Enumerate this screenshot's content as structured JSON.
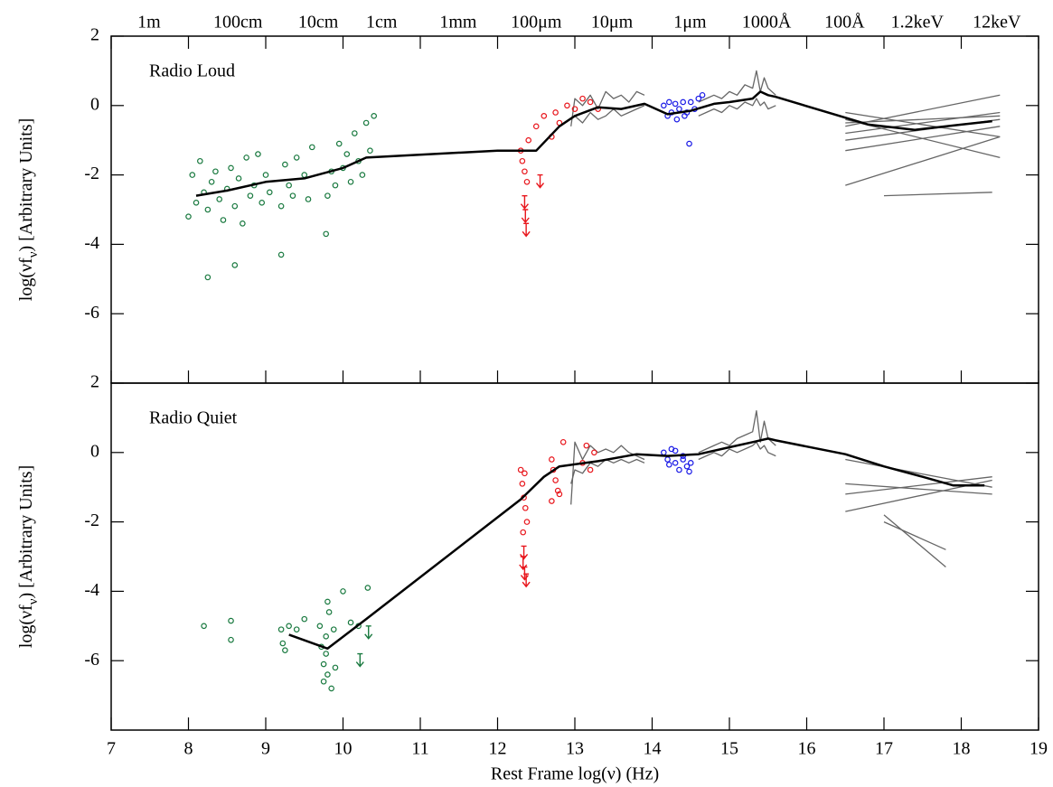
{
  "chart_data": [
    {
      "type": "line",
      "label": "Radio Loud",
      "ylabel": [
        "log(νf",
        "ν",
        ") [Arbitrary Units]"
      ],
      "xlim": [
        7,
        19
      ],
      "ylim": [
        -8,
        2
      ],
      "yticks": [
        -6,
        -4,
        -2,
        0,
        2
      ],
      "x2ticks": [
        {
          "value": 7.49,
          "label": "1m"
        },
        {
          "value": 8.64,
          "label": "100cm"
        },
        {
          "value": 9.68,
          "label": "10cm"
        },
        {
          "value": 10.5,
          "label": "1cm"
        },
        {
          "value": 11.49,
          "label": "1mm"
        },
        {
          "value": 12.5,
          "label": "100μm"
        },
        {
          "value": 13.48,
          "label": "10μm"
        },
        {
          "value": 14.49,
          "label": "1μm"
        },
        {
          "value": 15.48,
          "label": "1000Å"
        },
        {
          "value": 16.49,
          "label": "100Å"
        },
        {
          "value": 17.43,
          "label": "1.2keV"
        },
        {
          "value": 18.46,
          "label": "12keV"
        }
      ],
      "series": [
        {
          "marker": "line",
          "color": "#666666",
          "x": [
            12.95,
            13.0,
            13.1,
            13.2,
            13.3,
            13.4,
            13.5,
            13.6,
            13.7,
            13.8,
            13.9
          ],
          "values": [
            -0.6,
            0.2,
            0.0,
            0.3,
            -0.1,
            0.4,
            0.2,
            0.3,
            0.1,
            0.4,
            0.3
          ]
        },
        {
          "marker": "line",
          "color": "#666666",
          "x": [
            12.95,
            13.0,
            13.1,
            13.2,
            13.3,
            13.4,
            13.5,
            13.6,
            13.7,
            13.8,
            13.9
          ],
          "values": [
            -0.4,
            -0.3,
            -0.5,
            -0.2,
            -0.4,
            -0.3,
            -0.1,
            -0.3,
            -0.2,
            -0.1,
            0.0
          ]
        },
        {
          "marker": "line",
          "color": "#666666",
          "x": [
            14.6,
            14.7,
            14.8,
            14.9,
            15.0,
            15.1,
            15.2,
            15.3,
            15.35,
            15.4,
            15.45,
            15.5,
            15.6
          ],
          "values": [
            0.1,
            0.2,
            0.3,
            0.2,
            0.4,
            0.3,
            0.6,
            0.5,
            1.0,
            0.4,
            0.8,
            0.5,
            0.3
          ]
        },
        {
          "marker": "line",
          "color": "#666666",
          "x": [
            14.6,
            14.7,
            14.8,
            14.9,
            15.0,
            15.1,
            15.2,
            15.3,
            15.35,
            15.4,
            15.45,
            15.5,
            15.6
          ],
          "values": [
            -0.3,
            -0.2,
            -0.1,
            -0.2,
            0.0,
            -0.1,
            0.1,
            0.0,
            0.2,
            0.0,
            0.1,
            -0.1,
            0.0
          ]
        },
        {
          "marker": "line",
          "color": "#666666",
          "x": [
            16.5,
            18.5
          ],
          "values": [
            -0.2,
            -0.9
          ]
        },
        {
          "marker": "line",
          "color": "#666666",
          "x": [
            16.5,
            18.5
          ],
          "values": [
            -0.5,
            -0.3
          ]
        },
        {
          "marker": "line",
          "color": "#666666",
          "x": [
            16.5,
            18.5
          ],
          "values": [
            -0.8,
            -0.2
          ]
        },
        {
          "marker": "line",
          "color": "#666666",
          "x": [
            16.5,
            18.5
          ],
          "values": [
            -1.3,
            -0.6
          ]
        },
        {
          "marker": "line",
          "color": "#666666",
          "x": [
            16.5,
            18.5
          ],
          "values": [
            -2.3,
            -0.9
          ]
        },
        {
          "marker": "line",
          "color": "#666666",
          "x": [
            16.5,
            18.5
          ],
          "values": [
            -0.4,
            -1.5
          ]
        },
        {
          "marker": "line",
          "color": "#666666",
          "x": [
            16.5,
            18.5
          ],
          "values": [
            -0.6,
            0.3
          ]
        },
        {
          "marker": "line",
          "color": "#666666",
          "x": [
            16.5,
            18.5
          ],
          "values": [
            -1.0,
            -0.4
          ]
        },
        {
          "marker": "line",
          "color": "#666666",
          "x": [
            17.0,
            18.4
          ],
          "values": [
            -2.6,
            -2.5
          ]
        },
        {
          "marker": "circle",
          "color": "#1a7a40",
          "x": [
            8.0,
            8.05,
            8.1,
            8.15,
            8.2,
            8.25,
            8.3,
            8.35,
            8.4,
            8.45,
            8.5,
            8.55,
            8.6,
            8.65,
            8.7,
            8.75,
            8.8,
            8.85,
            8.9,
            8.95,
            9.0,
            9.05,
            9.2,
            9.25,
            9.3,
            9.35,
            9.4,
            9.5,
            9.55,
            9.6,
            9.8,
            9.85,
            9.9,
            9.95,
            10.0,
            10.05,
            10.1,
            10.15,
            10.2,
            10.25,
            10.3,
            10.35,
            10.4,
            8.25,
            8.6,
            9.2,
            9.78
          ],
          "values": [
            -3.2,
            -2.0,
            -2.8,
            -1.6,
            -2.5,
            -3.0,
            -2.2,
            -1.9,
            -2.7,
            -3.3,
            -2.4,
            -1.8,
            -2.9,
            -2.1,
            -3.4,
            -1.5,
            -2.6,
            -2.3,
            -1.4,
            -2.8,
            -2.0,
            -2.5,
            -2.9,
            -1.7,
            -2.3,
            -2.6,
            -1.5,
            -2.0,
            -2.7,
            -1.2,
            -2.6,
            -1.9,
            -2.3,
            -1.1,
            -1.8,
            -1.4,
            -2.2,
            -0.8,
            -1.6,
            -2.0,
            -0.5,
            -1.3,
            -0.3,
            -4.95,
            -4.6,
            -4.3,
            -3.7
          ]
        },
        {
          "marker": "circle",
          "color": "#e8161c",
          "x": [
            12.3,
            12.32,
            12.35,
            12.38,
            12.4,
            12.5,
            12.6,
            12.7,
            12.75,
            12.8,
            12.9,
            13.0,
            13.1,
            13.2,
            13.3
          ],
          "values": [
            -1.3,
            -1.6,
            -1.9,
            -2.2,
            -1.0,
            -0.6,
            -0.3,
            -0.9,
            -0.2,
            -0.5,
            0.0,
            -0.1,
            0.2,
            0.1,
            -0.1
          ]
        },
        {
          "marker": "arrow",
          "color": "#e8161c",
          "x": [
            12.35,
            12.36,
            12.37,
            12.55
          ],
          "values": [
            -2.6,
            -3.0,
            -3.4,
            -2.0
          ]
        },
        {
          "marker": "circle",
          "color": "#1a1ae6",
          "x": [
            14.15,
            14.2,
            14.22,
            14.25,
            14.3,
            14.32,
            14.35,
            14.4,
            14.42,
            14.45,
            14.5,
            14.55,
            14.6,
            14.65,
            14.48
          ],
          "values": [
            0.0,
            -0.3,
            0.1,
            -0.2,
            0.05,
            -0.4,
            -0.1,
            0.1,
            -0.3,
            -0.2,
            0.1,
            -0.1,
            0.2,
            0.3,
            -1.1
          ]
        },
        {
          "marker": "line",
          "color": "#000000",
          "width": 2.5,
          "x": [
            8.1,
            8.5,
            9.0,
            9.5,
            10.0,
            10.3,
            12.0,
            12.5,
            12.8,
            13.0,
            13.3,
            13.6,
            13.9,
            14.2,
            14.5,
            14.8,
            15.0,
            15.3,
            15.4,
            15.5,
            15.6,
            16.8,
            17.4,
            18.0,
            18.4
          ],
          "values": [
            -2.6,
            -2.45,
            -2.2,
            -2.1,
            -1.8,
            -1.5,
            -1.3,
            -1.3,
            -0.6,
            -0.3,
            -0.05,
            -0.1,
            0.05,
            -0.25,
            -0.15,
            0.05,
            0.1,
            0.2,
            0.4,
            0.3,
            0.25,
            -0.55,
            -0.7,
            -0.55,
            -0.45
          ]
        }
      ]
    },
    {
      "type": "line",
      "label": "Radio Quiet",
      "ylabel": [
        "log(νf",
        "ν",
        ") [Arbitrary Units]"
      ],
      "xlabel": "Rest Frame  log(ν)  (Hz)",
      "xlim": [
        7,
        19
      ],
      "ylim": [
        -8,
        2
      ],
      "yticks": [
        -6,
        -4,
        -2,
        0,
        2
      ],
      "xticks": [
        7,
        8,
        9,
        10,
        11,
        12,
        13,
        14,
        15,
        16,
        17,
        18,
        19
      ],
      "series": [
        {
          "marker": "line",
          "color": "#666666",
          "x": [
            12.95,
            13.0,
            13.1,
            13.2,
            13.3,
            13.4,
            13.5,
            13.6,
            13.7,
            13.8,
            13.9
          ],
          "values": [
            -1.5,
            0.3,
            -0.2,
            0.2,
            0.0,
            0.1,
            0.0,
            0.2,
            0.0,
            -0.1,
            -0.2
          ]
        },
        {
          "marker": "line",
          "color": "#666666",
          "x": [
            12.95,
            13.0,
            13.1,
            13.2,
            13.3,
            13.4,
            13.5,
            13.6,
            13.7,
            13.8,
            13.9
          ],
          "values": [
            -0.9,
            -0.5,
            -0.6,
            -0.3,
            -0.4,
            -0.2,
            -0.3,
            -0.2,
            -0.3,
            -0.2,
            -0.3
          ]
        },
        {
          "marker": "line",
          "color": "#666666",
          "x": [
            14.6,
            14.7,
            14.8,
            14.9,
            15.0,
            15.1,
            15.2,
            15.3,
            15.35,
            15.4,
            15.45,
            15.5,
            15.6
          ],
          "values": [
            0.0,
            0.1,
            0.2,
            0.3,
            0.2,
            0.4,
            0.5,
            0.6,
            1.2,
            0.3,
            0.9,
            0.4,
            0.2
          ]
        },
        {
          "marker": "line",
          "color": "#666666",
          "x": [
            14.6,
            14.7,
            14.8,
            14.9,
            15.0,
            15.1,
            15.2,
            15.3,
            15.35,
            15.4,
            15.45,
            15.5,
            15.6
          ],
          "values": [
            -0.2,
            -0.1,
            0.0,
            -0.1,
            0.1,
            0.0,
            0.1,
            0.2,
            0.3,
            0.1,
            0.2,
            0.0,
            -0.1
          ]
        },
        {
          "marker": "line",
          "color": "#666666",
          "x": [
            16.5,
            18.4
          ],
          "values": [
            -0.9,
            -1.2
          ]
        },
        {
          "marker": "line",
          "color": "#666666",
          "x": [
            16.5,
            18.4
          ],
          "values": [
            -1.7,
            -0.8
          ]
        },
        {
          "marker": "line",
          "color": "#666666",
          "x": [
            16.5,
            18.4
          ],
          "values": [
            -0.2,
            -1.0
          ]
        },
        {
          "marker": "line",
          "color": "#666666",
          "x": [
            16.5,
            18.4
          ],
          "values": [
            -1.2,
            -0.7
          ]
        },
        {
          "marker": "line",
          "color": "#666666",
          "x": [
            17.0,
            17.8
          ],
          "values": [
            -1.8,
            -3.3
          ]
        },
        {
          "marker": "line",
          "color": "#666666",
          "x": [
            17.0,
            17.8
          ],
          "values": [
            -2.0,
            -2.8
          ]
        },
        {
          "marker": "circle",
          "color": "#1a7a40",
          "x": [
            8.2,
            8.55,
            8.55,
            9.2,
            9.22,
            9.25,
            9.3,
            9.4,
            9.5,
            9.7,
            9.72,
            9.75,
            9.78,
            9.8,
            9.82,
            9.85,
            9.75,
            9.88,
            9.8,
            10.0,
            10.1,
            10.2,
            10.32,
            9.78,
            9.9
          ],
          "values": [
            -5.0,
            -4.85,
            -5.4,
            -5.1,
            -5.5,
            -5.7,
            -5.0,
            -5.1,
            -4.8,
            -5.0,
            -5.6,
            -6.1,
            -5.3,
            -6.4,
            -4.6,
            -6.8,
            -6.6,
            -5.1,
            -4.3,
            -4.0,
            -4.9,
            -5.0,
            -3.9,
            -5.8,
            -6.2
          ]
        },
        {
          "marker": "arrow",
          "color": "#1a7a40",
          "x": [
            10.22,
            10.33
          ],
          "values": [
            -5.8,
            -5.0
          ]
        },
        {
          "marker": "circle",
          "color": "#e8161c",
          "x": [
            12.3,
            12.32,
            12.34,
            12.36,
            12.38,
            12.33,
            12.35,
            12.7,
            12.72,
            12.75,
            12.78,
            12.8,
            12.85,
            12.7,
            13.1,
            13.15,
            13.2,
            13.25
          ],
          "values": [
            -0.5,
            -0.9,
            -1.3,
            -1.6,
            -2.0,
            -2.3,
            -0.6,
            -0.2,
            -0.5,
            -0.8,
            -1.1,
            -1.2,
            0.3,
            -1.4,
            -0.3,
            0.2,
            -0.5,
            0.0
          ]
        },
        {
          "marker": "arrow",
          "color": "#e8161c",
          "x": [
            12.33,
            12.35,
            12.37,
            12.34
          ],
          "values": [
            -3.0,
            -3.3,
            -3.5,
            -2.7
          ]
        },
        {
          "marker": "circle",
          "color": "#1a1ae6",
          "x": [
            14.15,
            14.2,
            14.25,
            14.3,
            14.35,
            14.4,
            14.45,
            14.5,
            14.3,
            14.4,
            14.22,
            14.48
          ],
          "values": [
            0.0,
            -0.2,
            0.1,
            -0.3,
            -0.5,
            -0.2,
            -0.4,
            -0.3,
            0.05,
            -0.1,
            -0.35,
            -0.55
          ]
        },
        {
          "marker": "line",
          "color": "#000000",
          "width": 2.5,
          "x": [
            9.3,
            9.8,
            10.3,
            12.3,
            12.6,
            12.8,
            13.3,
            13.8,
            14.2,
            14.6,
            15.0,
            15.3,
            15.5,
            15.6,
            16.5,
            17.0,
            17.5,
            17.9,
            18.3
          ],
          "values": [
            -5.25,
            -5.65,
            -4.8,
            -1.35,
            -0.7,
            -0.4,
            -0.25,
            -0.05,
            -0.1,
            -0.05,
            0.15,
            0.3,
            0.4,
            0.35,
            -0.05,
            -0.4,
            -0.7,
            -0.95,
            -0.95
          ]
        }
      ]
    }
  ]
}
